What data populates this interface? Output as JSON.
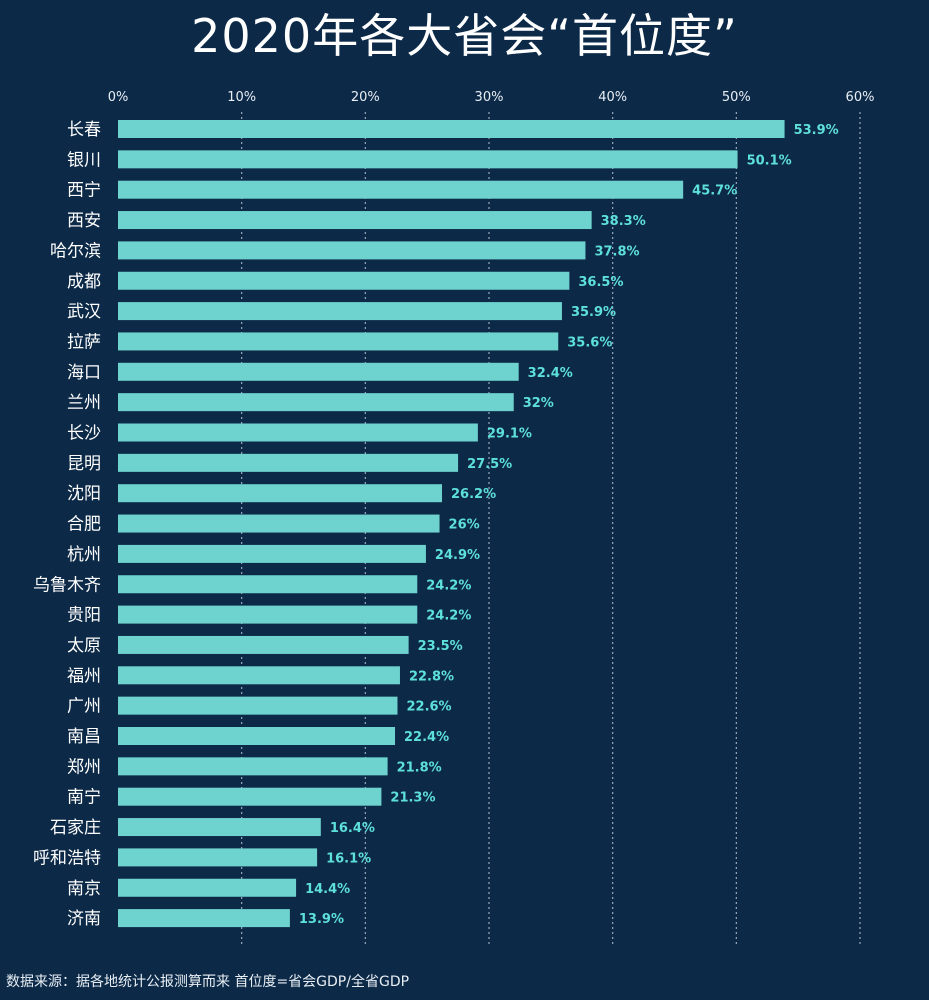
{
  "title": "2020年各大省会“首位度”",
  "source": "数据来源：据各地统计公报测算而来   首位度=省会GDP/全省GDP",
  "colors": {
    "background": "#0c2a48",
    "bar": "#6ed3cf",
    "value_text": "#5ee0da",
    "grid": "#c8d4e0",
    "text": "#ffffff"
  },
  "chart_data": {
    "type": "bar",
    "orientation": "horizontal",
    "title": "2020年各大省会“首位度”",
    "categories": [
      "长春",
      "银川",
      "西宁",
      "西安",
      "哈尔滨",
      "成都",
      "武汉",
      "拉萨",
      "海口",
      "兰州",
      "长沙",
      "昆明",
      "沈阳",
      "合肥",
      "杭州",
      "乌鲁木齐",
      "贵阳",
      "太原",
      "福州",
      "广州",
      "南昌",
      "郑州",
      "南宁",
      "石家庄",
      "呼和浩特",
      "南京",
      "济南"
    ],
    "values": [
      53.9,
      50.1,
      45.7,
      38.3,
      37.8,
      36.5,
      35.9,
      35.6,
      32.4,
      32,
      29.1,
      27.5,
      26.2,
      26,
      24.9,
      24.2,
      24.2,
      23.5,
      22.8,
      22.6,
      22.4,
      21.8,
      21.3,
      16.4,
      16.1,
      14.4,
      13.9
    ],
    "value_labels": [
      "53.9%",
      "50.1%",
      "45.7%",
      "38.3%",
      "37.8%",
      "36.5%",
      "35.9%",
      "35.6%",
      "32.4%",
      "32%",
      "29.1%",
      "27.5%",
      "26.2%",
      "26%",
      "24.9%",
      "24.2%",
      "24.2%",
      "23.5%",
      "22.8%",
      "22.6%",
      "22.4%",
      "21.8%",
      "21.3%",
      "16.4%",
      "16.1%",
      "14.4%",
      "13.9%"
    ],
    "xlim": [
      0,
      60
    ],
    "x_ticks": [
      0,
      10,
      20,
      30,
      40,
      50,
      60
    ],
    "x_tick_labels": [
      "0%",
      "10%",
      "20%",
      "30%",
      "40%",
      "50%",
      "60%"
    ],
    "x_axis_position": "top",
    "grid": true,
    "grid_style": "dotted vertical",
    "legend": false
  }
}
